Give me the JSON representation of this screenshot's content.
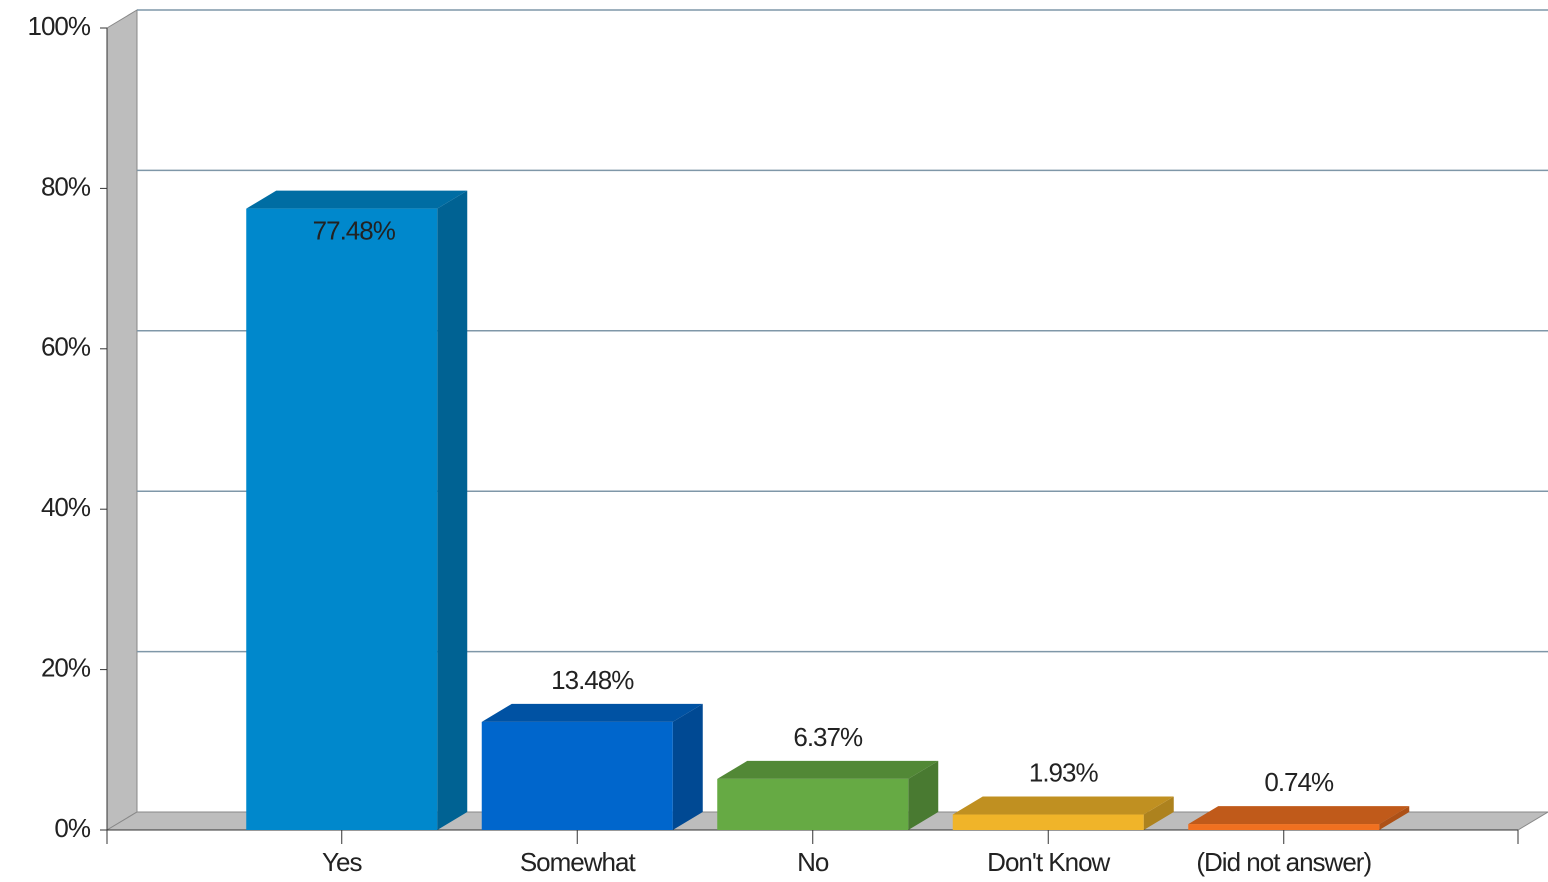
{
  "chart_data": {
    "type": "bar",
    "categories": [
      "Yes",
      "Somewhat",
      "No",
      "Don't Know",
      "(Did not answer)"
    ],
    "values": [
      77.48,
      13.48,
      6.37,
      1.93,
      0.74
    ],
    "value_labels": [
      "77.48%",
      "13.48%",
      "6.37%",
      "1.93%",
      "0.74%"
    ],
    "colors": [
      "#0088cc",
      "#0066cc",
      "#66aa44",
      "#f0b429",
      "#f07020"
    ],
    "ylim": [
      0,
      100
    ],
    "yticks": [
      {
        "value": 0,
        "label": "0%"
      },
      {
        "value": 20,
        "label": "20%"
      },
      {
        "value": 40,
        "label": "40%"
      },
      {
        "value": 60,
        "label": "60%"
      },
      {
        "value": 80,
        "label": "80%"
      },
      {
        "value": 100,
        "label": "100%"
      }
    ],
    "grid": true
  }
}
